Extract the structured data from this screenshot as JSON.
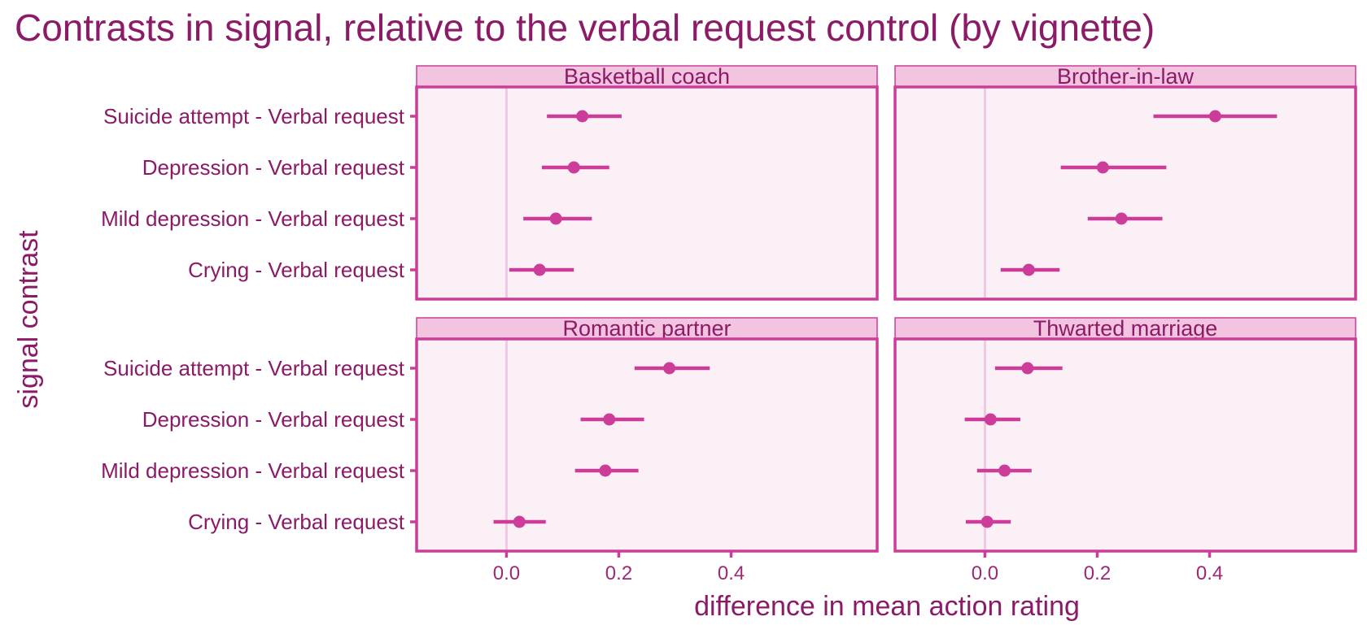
{
  "chart_data": {
    "type": "scatter",
    "title": "Contrasts in signal, relative to the verbal request control (by vignette)",
    "xlabel": "difference in mean action rating",
    "ylabel": "signal contrast",
    "xlim": [
      -0.16,
      0.66
    ],
    "xticks": [
      0.0,
      0.2,
      0.4
    ],
    "x_tick_labels": [
      "0.0",
      "0.2",
      "0.4"
    ],
    "reference_line": 0.0,
    "categories": [
      "Suicide attempt - Verbal request",
      "Depression - Verbal request",
      "Mild depression - Verbal request",
      "Crying - Verbal request"
    ],
    "facets": [
      {
        "name": "Basketball coach",
        "estimates": [
          0.135,
          0.12,
          0.088,
          0.059
        ],
        "lower": [
          0.072,
          0.063,
          0.03,
          0.005
        ],
        "upper": [
          0.205,
          0.183,
          0.152,
          0.12
        ]
      },
      {
        "name": "Brother-in-law",
        "estimates": [
          0.41,
          0.21,
          0.243,
          0.078
        ],
        "lower": [
          0.3,
          0.135,
          0.183,
          0.028
        ],
        "upper": [
          0.52,
          0.323,
          0.316,
          0.133
        ]
      },
      {
        "name": "Romantic partner",
        "estimates": [
          0.29,
          0.183,
          0.176,
          0.023
        ],
        "lower": [
          0.228,
          0.132,
          0.122,
          -0.023
        ],
        "upper": [
          0.362,
          0.245,
          0.235,
          0.07
        ]
      },
      {
        "name": "Thwarted marriage",
        "estimates": [
          0.076,
          0.01,
          0.035,
          0.004
        ],
        "lower": [
          0.018,
          -0.036,
          -0.014,
          -0.034
        ],
        "upper": [
          0.138,
          0.063,
          0.083,
          0.046
        ]
      }
    ],
    "colors": {
      "point": "#cc3d99",
      "panel_border": "#cc3d99",
      "panel_fill": "#fcf0f7",
      "strip_fill": "#f2c4e0",
      "zero_line": "#f0c8e3",
      "text": "#8b1a67"
    },
    "grid": false,
    "legend": "none"
  }
}
